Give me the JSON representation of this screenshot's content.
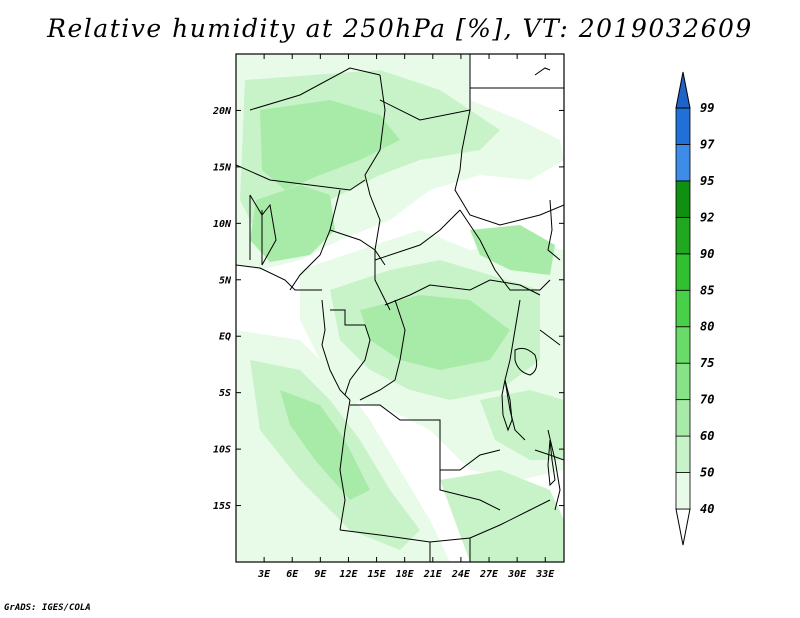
{
  "title": "Relative humidity at 250hPa [%], VT: 2019032609",
  "credit": "GrADS: IGES/COLA",
  "map": {
    "lat_range": [
      -20,
      25
    ],
    "lon_range": [
      0,
      35
    ],
    "lat_labels": [
      "20N",
      "15N",
      "10N",
      "5N",
      "EQ",
      "5S",
      "10S",
      "15S"
    ],
    "lat_values": [
      20,
      15,
      10,
      5,
      0,
      -5,
      -10,
      -15
    ],
    "lon_labels": [
      "3E",
      "6E",
      "9E",
      "12E",
      "15E",
      "18E",
      "21E",
      "24E",
      "27E",
      "30E",
      "33E"
    ],
    "lon_values": [
      3,
      6,
      9,
      12,
      15,
      18,
      21,
      24,
      27,
      30,
      33
    ]
  },
  "colorbar": {
    "levels": [
      "40",
      "50",
      "60",
      "70",
      "75",
      "80",
      "85",
      "90",
      "92",
      "95",
      "97",
      "99"
    ],
    "colors": [
      "#e8fbe8",
      "#c8f3c8",
      "#a8eba8",
      "#88e388",
      "#68db68",
      "#48d048",
      "#30c030",
      "#20a820",
      "#109010",
      "#3c8ce8",
      "#2070d8",
      "#1050b8"
    ],
    "below_color": "#ffffff",
    "above_color": "#1e64c8"
  }
}
